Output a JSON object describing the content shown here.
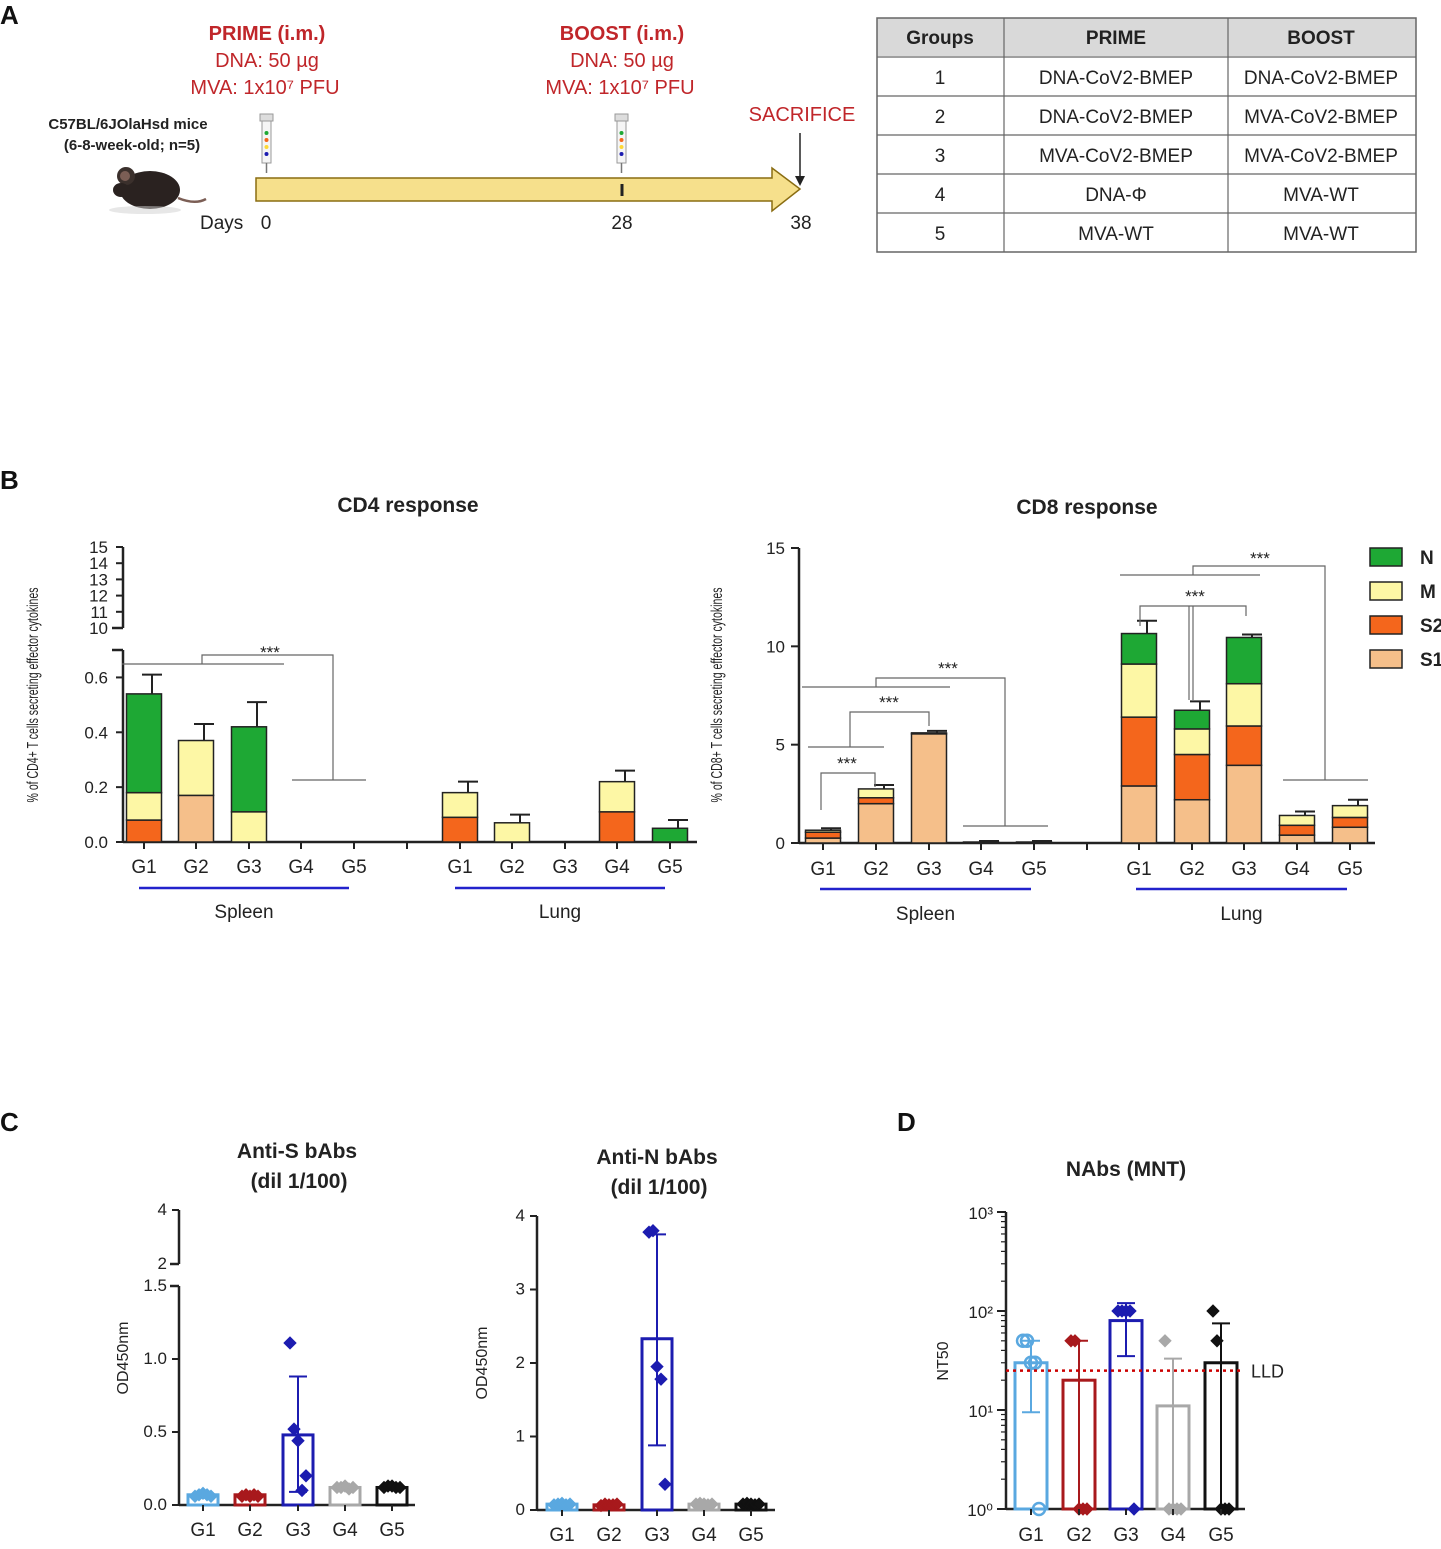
{
  "panel_letters": {
    "a": "A",
    "b": "B",
    "c": "C",
    "d": "D"
  },
  "colors": {
    "N": "#1ea834",
    "M": "#fdf7a5",
    "S2": "#f4661c",
    "S1": "#f5bf8a",
    "G1": "#5aa8e0",
    "G2": "#a8191c",
    "G3": "#1c1cb0",
    "G4": "#a8a8a8",
    "G5": "#111111",
    "timeline": "#f6e08c",
    "accent_red": "#c0262a",
    "tissue_line": "#2222cc"
  },
  "schedule": {
    "prime_title": "PRIME (i.m.)",
    "prime_dna": "DNA: 50 µg",
    "prime_mva": "MVA: 1x10⁷ PFU",
    "boost_title": "BOOST (i.m.)",
    "boost_dna": "DNA: 50 µg",
    "boost_mva": "MVA: 1x10⁷ PFU",
    "sacrifice": "SACRIFICE",
    "mice_line1": "C57BL/6JOlaHsd mice",
    "mice_line2": "(6-8-week-old; n=5)",
    "days_label": "Days",
    "day0": "0",
    "day28": "28",
    "day38": "38",
    "mouse_icon": "mouse-icon",
    "syringe_icon": "syringe-icon"
  },
  "group_table": {
    "headers": [
      "Groups",
      "PRIME",
      "BOOST"
    ],
    "rows": [
      [
        "1",
        "DNA-CoV2-BMEP",
        "DNA-CoV2-BMEP"
      ],
      [
        "2",
        "DNA-CoV2-BMEP",
        "MVA-CoV2-BMEP"
      ],
      [
        "3",
        "MVA-CoV2-BMEP",
        "MVA-CoV2-BMEP"
      ],
      [
        "4",
        "DNA-Φ",
        "MVA-WT"
      ],
      [
        "5",
        "MVA-WT",
        "MVA-WT"
      ]
    ]
  },
  "chart_data": [
    {
      "id": "cd4",
      "type": "bar",
      "stacked": true,
      "title": "CD4 response",
      "ylabel": "% of CD4+ T cells secreting effector cytokines",
      "ylim": [
        0,
        15
      ],
      "axis_break": [
        0.7,
        10
      ],
      "yticks_lower": [
        "0.0",
        "0.2",
        "0.4",
        "0.6"
      ],
      "yticks_upper": [
        "10",
        "11",
        "12",
        "13",
        "14",
        "15"
      ],
      "tissues": [
        "Spleen",
        "Lung"
      ],
      "categories": [
        "G1",
        "G2",
        "G3",
        "G4",
        "G5"
      ],
      "series": [
        {
          "name": "S1",
          "spleen": [
            0,
            0.17,
            0,
            0,
            0
          ],
          "lung": [
            0,
            0,
            0,
            0,
            0
          ]
        },
        {
          "name": "S2",
          "spleen": [
            0.08,
            0,
            0,
            0,
            0
          ],
          "lung": [
            0.09,
            0,
            0,
            0.11,
            0
          ]
        },
        {
          "name": "M",
          "spleen": [
            0.1,
            0.2,
            0.11,
            0,
            0
          ],
          "lung": [
            0.09,
            0.07,
            0,
            0.11,
            0
          ]
        },
        {
          "name": "N",
          "spleen": [
            0.36,
            0,
            0.31,
            0,
            0
          ],
          "lung": [
            0,
            0,
            0,
            0,
            0.05
          ]
        }
      ],
      "error_top": {
        "spleen": [
          0.61,
          0.43,
          0.51,
          null,
          null
        ],
        "lung": [
          0.22,
          0.1,
          null,
          0.26,
          0.08
        ]
      },
      "significance": "***"
    },
    {
      "id": "cd8",
      "type": "bar",
      "stacked": true,
      "title": "CD8 response",
      "ylabel": "% of CD8+ T cells secreting effector cytokines",
      "ylim": [
        0,
        15
      ],
      "yticks": [
        "0",
        "5",
        "10",
        "15"
      ],
      "tissues": [
        "Spleen",
        "Lung"
      ],
      "categories": [
        "G1",
        "G2",
        "G3",
        "G4",
        "G5"
      ],
      "legend": [
        "N",
        "M",
        "S2",
        "S1"
      ],
      "legend_position": "top-right",
      "series": [
        {
          "name": "S1",
          "spleen": [
            0.25,
            2.0,
            5.55,
            0.05,
            0.05
          ],
          "lung": [
            2.9,
            2.2,
            3.95,
            0.4,
            0.8
          ]
        },
        {
          "name": "S2",
          "spleen": [
            0.3,
            0.3,
            0,
            0,
            0
          ],
          "lung": [
            3.5,
            2.3,
            2.0,
            0.5,
            0.5
          ]
        },
        {
          "name": "M",
          "spleen": [
            0.1,
            0.45,
            0.05,
            0,
            0
          ],
          "lung": [
            2.7,
            1.3,
            2.15,
            0.5,
            0.6
          ]
        },
        {
          "name": "N",
          "spleen": [
            0,
            0,
            0,
            0,
            0
          ],
          "lung": [
            1.55,
            0.95,
            2.35,
            0,
            0
          ]
        }
      ],
      "error_top": {
        "spleen": [
          0.75,
          2.95,
          5.7,
          0.1,
          0.1
        ],
        "lung": [
          11.3,
          7.2,
          10.6,
          1.6,
          2.2
        ]
      },
      "significance": "***"
    },
    {
      "id": "anti_s",
      "type": "bar",
      "title": "Anti-S bAbs (dil 1/100)",
      "title_lines": [
        "Anti-S bAbs",
        "(dil 1/100)"
      ],
      "ylabel": "OD450nm",
      "ylim": [
        0,
        4
      ],
      "axis_break": [
        1.5,
        2
      ],
      "yticks_lower": [
        "0.0",
        "0.5",
        "1.0",
        "1.5"
      ],
      "yticks_upper": [
        "2",
        "4"
      ],
      "categories": [
        "G1",
        "G2",
        "G3",
        "G4",
        "G5"
      ],
      "values": [
        0.07,
        0.07,
        0.48,
        0.12,
        0.12
      ],
      "error_low": [
        0.05,
        0.05,
        0.09,
        0.11,
        0.11
      ],
      "error_high": [
        0.09,
        0.09,
        0.88,
        0.14,
        0.14
      ],
      "points": [
        [
          0.06,
          0.07,
          0.08,
          0.07,
          0.06
        ],
        [
          0.06,
          0.07,
          0.06,
          0.07,
          0.06
        ],
        [
          1.11,
          0.52,
          0.44,
          0.1,
          0.2
        ],
        [
          0.12,
          0.12,
          0.13,
          0.11,
          0.12
        ],
        [
          0.12,
          0.13,
          0.13,
          0.12,
          0.12
        ]
      ]
    },
    {
      "id": "anti_n",
      "type": "bar",
      "title": "Anti-N bAbs (dil 1/100)",
      "title_lines": [
        "Anti-N bAbs",
        "(dil 1/100)"
      ],
      "ylabel": "OD450nm",
      "ylim": [
        0,
        4
      ],
      "yticks": [
        "0",
        "1",
        "2",
        "3",
        "4"
      ],
      "categories": [
        "G1",
        "G2",
        "G3",
        "G4",
        "G5"
      ],
      "values": [
        0.08,
        0.07,
        2.33,
        0.08,
        0.08
      ],
      "error_low": [
        0.06,
        0.05,
        0.88,
        0.06,
        0.06
      ],
      "error_high": [
        0.1,
        0.09,
        3.75,
        0.1,
        0.1
      ],
      "points": [
        [
          0.07,
          0.08,
          0.09,
          0.07,
          0.08
        ],
        [
          0.06,
          0.08,
          0.07,
          0.07,
          0.08
        ],
        [
          3.78,
          3.8,
          1.95,
          1.78,
          0.35
        ],
        [
          0.08,
          0.09,
          0.08,
          0.07,
          0.08
        ],
        [
          0.08,
          0.09,
          0.08,
          0.07,
          0.08
        ]
      ]
    },
    {
      "id": "nabs",
      "type": "bar",
      "title": "NAbs (MNT)",
      "ylabel": "NT50",
      "yscale": "log",
      "ylim": [
        1,
        1000
      ],
      "yticks": [
        "10⁰",
        "10¹",
        "10²",
        "10³"
      ],
      "categories": [
        "G1",
        "G2",
        "G3",
        "G4",
        "G5"
      ],
      "values": [
        30,
        20,
        80,
        11,
        30
      ],
      "error_low": [
        9.5,
        1,
        35,
        1,
        1
      ],
      "error_high": [
        50,
        50,
        120,
        33,
        75
      ],
      "points": [
        [
          50,
          50,
          30,
          30,
          1
        ],
        [
          50,
          50,
          1,
          1,
          1
        ],
        [
          100,
          100,
          100,
          100,
          1
        ],
        [
          50,
          1,
          1,
          1,
          1
        ],
        [
          100,
          50,
          1,
          1,
          1
        ]
      ],
      "lld_label": "LLD",
      "lld_value": 25
    }
  ]
}
